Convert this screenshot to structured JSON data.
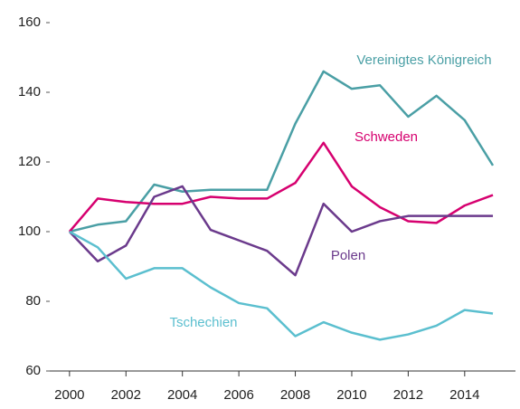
{
  "chart_data": {
    "type": "line",
    "x": [
      2000,
      2001,
      2002,
      2003,
      2004,
      2005,
      2006,
      2007,
      2008,
      2009,
      2010,
      2011,
      2012,
      2013,
      2014,
      2015
    ],
    "series": [
      {
        "name": "Vereinigtes Königreich",
        "color": "#4a9fa5",
        "values": [
          100,
          102,
          103,
          113.5,
          111.5,
          112,
          112,
          112,
          131,
          146,
          141,
          142,
          133,
          139,
          132,
          119
        ]
      },
      {
        "name": "Schweden",
        "color": "#d6006f",
        "values": [
          100,
          109.5,
          108.5,
          108,
          108,
          110,
          109.5,
          109.5,
          114,
          125.5,
          113,
          107,
          103,
          102.5,
          107.5,
          110.5
        ]
      },
      {
        "name": "Polen",
        "color": "#6b3a8c",
        "values": [
          100,
          91.5,
          96,
          110,
          113,
          100.5,
          97.5,
          94.5,
          87.5,
          108,
          100,
          103,
          104.5,
          104.5,
          104.5,
          104.5
        ]
      },
      {
        "name": "Tschechien",
        "color": "#5bbfcf",
        "values": [
          100,
          95.5,
          86.5,
          89.5,
          89.5,
          84,
          79.5,
          78,
          70,
          74,
          71,
          69,
          70.5,
          73,
          77.5,
          76.5
        ]
      }
    ],
    "xlim": [
      1999.3,
      2015.8
    ],
    "xticks": [
      2000,
      2002,
      2004,
      2006,
      2008,
      2010,
      2012,
      2014
    ],
    "ylim": [
      60,
      160
    ],
    "yticks": [
      60,
      80,
      100,
      120,
      140,
      160
    ],
    "grid": false
  }
}
